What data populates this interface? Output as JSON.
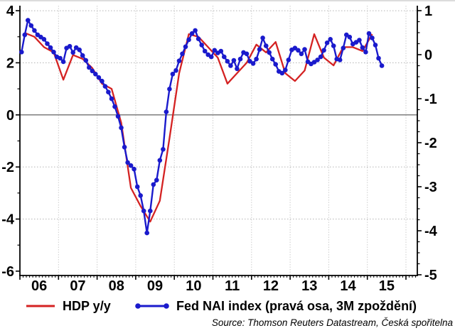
{
  "chart_data": {
    "type": "line",
    "title": "",
    "source_note": "Source: Thomson Reuters Datastream, Česká spořitelna",
    "x_axis": {
      "tick_labels": [
        "06",
        "07",
        "08",
        "09",
        "10",
        "11",
        "12",
        "13",
        "14",
        "15"
      ],
      "start_year": 2006,
      "minor_ticks": "monthly"
    },
    "left_axis": {
      "range": [
        -6,
        4
      ],
      "tick_values": [
        4,
        2,
        0,
        -2,
        -4,
        -6
      ],
      "tick_labels": [
        "4",
        "2",
        "0",
        "-2",
        "-4",
        "-6"
      ],
      "minor_tick_values": [
        3,
        1,
        -1,
        -3,
        -5
      ],
      "gridline_values": [
        4,
        2,
        -2,
        -4
      ],
      "zero_line": 0
    },
    "right_axis": {
      "range": [
        -5,
        1
      ],
      "tick_values": [
        1,
        0,
        -1,
        -2,
        -3,
        -4,
        -5
      ],
      "tick_labels": [
        "1",
        "0",
        "-1",
        "-2",
        "-3",
        "-4",
        "-5"
      ],
      "minor_tick_step": 0.25
    },
    "series": [
      {
        "name": "HDP y/y",
        "axis": "left",
        "color": "#d42222",
        "marker": "none",
        "frequency": "quarterly",
        "start": "2006-Q1",
        "end": "2015-Q1",
        "values": [
          3.15,
          3.0,
          2.6,
          2.4,
          1.35,
          2.3,
          2.15,
          1.8,
          1.2,
          1.0,
          -0.3,
          -2.8,
          -3.5,
          -4.1,
          -3.3,
          -0.9,
          1.6,
          3.1,
          3.0,
          2.6,
          2.2,
          1.2,
          1.6,
          2.0,
          2.7,
          2.4,
          2.8,
          1.6,
          1.3,
          1.7,
          3.1,
          2.2,
          1.9,
          2.6,
          2.6,
          2.45,
          3.1
        ]
      },
      {
        "name": "Fed NAI index (pravá osa, 3M zpoždění)",
        "axis": "right",
        "color": "#1a1acc",
        "marker": "circle",
        "frequency": "monthly",
        "start": "2006-01",
        "end": "2015-05",
        "values": [
          0.06,
          0.45,
          0.78,
          0.66,
          0.55,
          0.45,
          0.4,
          0.35,
          0.25,
          0.16,
          0.06,
          -0.05,
          -0.08,
          -0.16,
          0.15,
          0.19,
          0.05,
          0.16,
          0.11,
          -0.02,
          -0.13,
          -0.29,
          -0.37,
          -0.44,
          -0.52,
          -0.6,
          -0.72,
          -0.85,
          -1.0,
          -1.18,
          -1.4,
          -1.66,
          -2.1,
          -2.45,
          -2.52,
          -2.6,
          -3.0,
          -3.2,
          -3.55,
          -4.05,
          -3.55,
          -2.95,
          -2.85,
          -2.4,
          -2.15,
          -1.3,
          -0.78,
          -0.44,
          -0.36,
          -0.14,
          0.02,
          0.18,
          0.34,
          0.48,
          0.55,
          0.36,
          0.22,
          0.08,
          0.0,
          -0.05,
          0.1,
          0.04,
          0.08,
          -0.05,
          -0.15,
          -0.25,
          -0.13,
          -0.32,
          -0.1,
          0.05,
          0.02,
          -0.15,
          -0.2,
          -0.1,
          0.12,
          0.38,
          0.2,
          0.05,
          -0.1,
          -0.22,
          -0.38,
          -0.42,
          -0.35,
          -0.12,
          0.11,
          0.15,
          0.1,
          0.02,
          0.12,
          -0.16,
          -0.21,
          -0.17,
          -0.12,
          -0.05,
          0.1,
          0.27,
          0.35,
          0.2,
          -0.1,
          -0.12,
          0.15,
          0.45,
          0.4,
          0.24,
          0.28,
          0.33,
          0.16,
          0.06,
          0.48,
          0.38,
          0.22,
          -0.08,
          -0.25
        ]
      }
    ],
    "legend_position": "bottom"
  }
}
